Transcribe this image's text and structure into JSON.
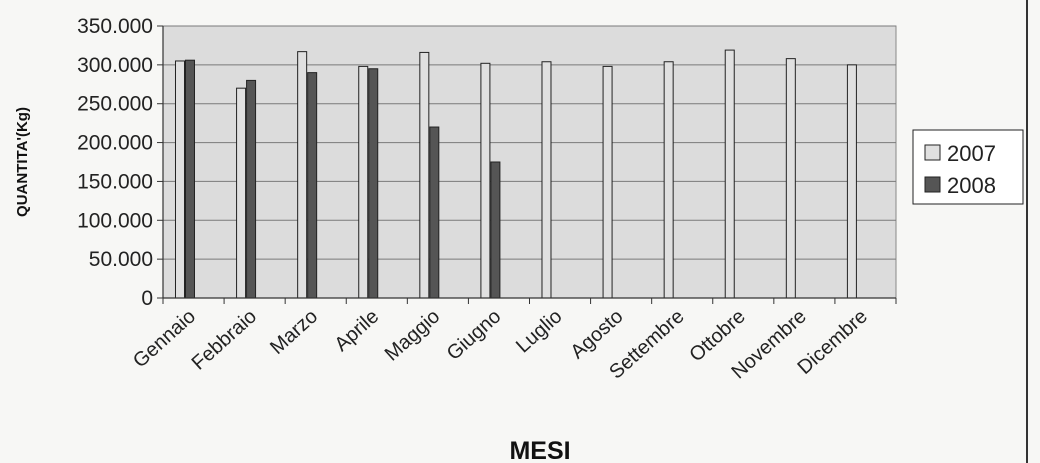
{
  "chart_data": {
    "type": "bar",
    "title": "",
    "xlabel": "MESI",
    "ylabel": "QUANTITA'(Kg)",
    "ylim": [
      0,
      350000
    ],
    "yticks": [
      0,
      50000,
      100000,
      150000,
      200000,
      250000,
      300000,
      350000
    ],
    "ytick_labels": [
      "0",
      "50.000",
      "100.000",
      "150.000",
      "200.000",
      "250.000",
      "300.000",
      "350.000"
    ],
    "grid": true,
    "legend_position": "right",
    "categories": [
      "Gennaio",
      "Febbraio",
      "Marzo",
      "Aprile",
      "Maggio",
      "Giugno",
      "Luglio",
      "Agosto",
      "Settembre",
      "Ottobre",
      "Novembre",
      "Dicembre"
    ],
    "series": [
      {
        "name": "2007",
        "color": "#e0e0e0",
        "values": [
          305000,
          270000,
          317000,
          298000,
          316000,
          302000,
          304000,
          298000,
          304000,
          319000,
          308000,
          300000
        ]
      },
      {
        "name": "2008",
        "color": "#555555",
        "values": [
          306000,
          280000,
          290000,
          295000,
          220000,
          175000,
          null,
          null,
          null,
          null,
          null,
          null
        ]
      }
    ]
  }
}
